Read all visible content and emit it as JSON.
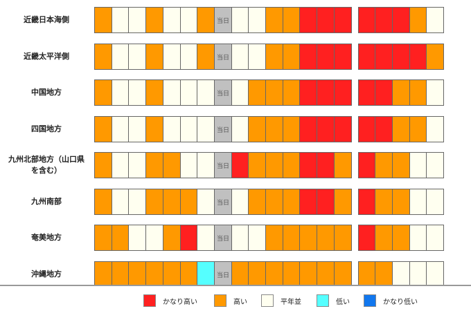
{
  "colors": {
    "very_high": "#ff2020",
    "high": "#ff9900",
    "normal": "#fffff0",
    "low": "#55ffff",
    "very_low": "#1177ee",
    "today": "#c0c0c0"
  },
  "today_label": "当日",
  "regions": [
    {
      "name": "近畿日本海側",
      "days": [
        "high",
        "normal",
        "normal",
        "high",
        "normal",
        "normal",
        "high",
        "today",
        "normal",
        "normal",
        "high",
        "high",
        "very_high",
        "very_high",
        "very_high",
        "very_high",
        "very_high",
        "very_high",
        "high",
        "normal"
      ]
    },
    {
      "name": "近畿太平洋側",
      "days": [
        "high",
        "normal",
        "normal",
        "high",
        "normal",
        "normal",
        "high",
        "today",
        "normal",
        "normal",
        "high",
        "high",
        "very_high",
        "very_high",
        "very_high",
        "very_high",
        "very_high",
        "very_high",
        "very_high",
        "high"
      ]
    },
    {
      "name": "中国地方",
      "days": [
        "high",
        "normal",
        "normal",
        "high",
        "normal",
        "normal",
        "normal",
        "today",
        "normal",
        "high",
        "high",
        "high",
        "very_high",
        "very_high",
        "very_high",
        "very_high",
        "very_high",
        "high",
        "high",
        "normal"
      ]
    },
    {
      "name": "四国地方",
      "days": [
        "high",
        "normal",
        "normal",
        "high",
        "normal",
        "normal",
        "normal",
        "today",
        "normal",
        "high",
        "high",
        "high",
        "very_high",
        "very_high",
        "very_high",
        "very_high",
        "very_high",
        "high",
        "high",
        "normal"
      ]
    },
    {
      "name": "九州北部地方（山口県\nを含む）",
      "days": [
        "high",
        "normal",
        "normal",
        "high",
        "high",
        "normal",
        "normal",
        "today",
        "very_high",
        "high",
        "high",
        "high",
        "very_high",
        "very_high",
        "high",
        "very_high",
        "high",
        "high",
        "normal",
        "normal"
      ]
    },
    {
      "name": "九州南部",
      "days": [
        "high",
        "normal",
        "normal",
        "high",
        "high",
        "high",
        "normal",
        "today",
        "normal",
        "high",
        "high",
        "high",
        "very_high",
        "very_high",
        "high",
        "very_high",
        "high",
        "high",
        "normal",
        "normal"
      ]
    },
    {
      "name": "奄美地方",
      "days": [
        "high",
        "high",
        "normal",
        "normal",
        "high",
        "very_high",
        "normal",
        "today",
        "normal",
        "normal",
        "high",
        "high",
        "high",
        "high",
        "high",
        "very_high",
        "high",
        "high",
        "normal",
        "normal"
      ]
    },
    {
      "name": "沖縄地方",
      "days": [
        "high",
        "high",
        "high",
        "high",
        "high",
        "high",
        "low",
        "today",
        "high",
        "high",
        "high",
        "high",
        "high",
        "high",
        "high",
        "high",
        "high",
        "normal",
        "normal",
        "normal"
      ]
    }
  ],
  "legend": [
    {
      "key": "very_high",
      "label": "かなり高い"
    },
    {
      "key": "high",
      "label": "高い"
    },
    {
      "key": "normal",
      "label": "平年並"
    },
    {
      "key": "low",
      "label": "低い"
    },
    {
      "key": "very_low",
      "label": "かなり低い"
    }
  ]
}
